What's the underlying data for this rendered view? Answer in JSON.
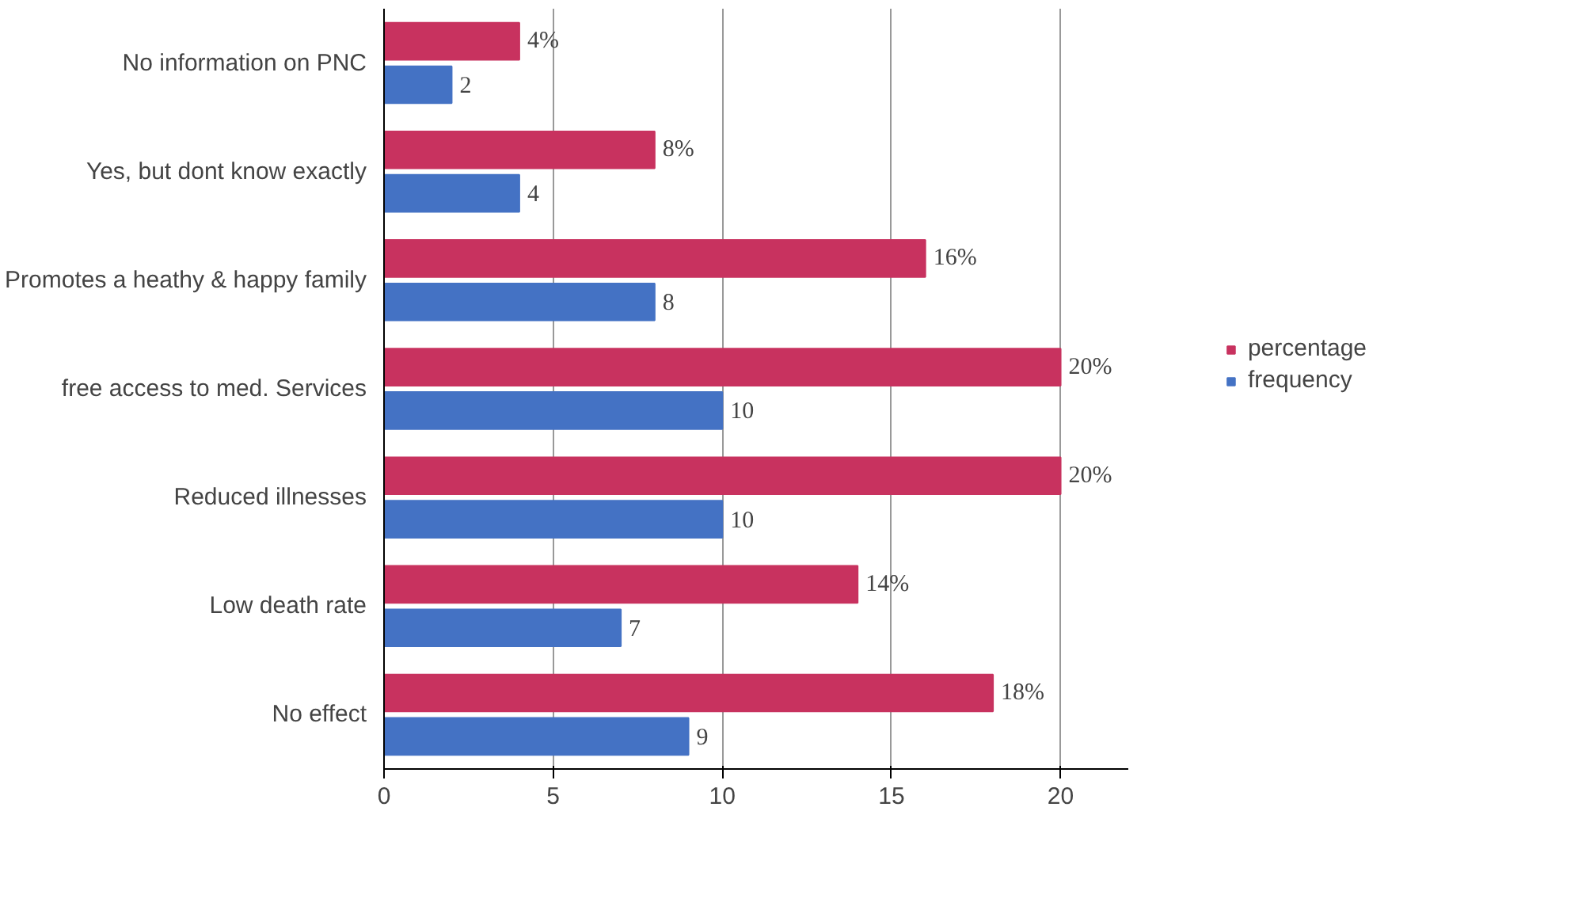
{
  "chart_data": {
    "type": "bar",
    "orientation": "horizontal",
    "categories": [
      "No information on PNC",
      "Yes, but dont know exactly",
      "Promotes a heathy & happy family",
      "free access to med. Services",
      "Reduced illnesses",
      "Low death rate",
      "No effect"
    ],
    "series": [
      {
        "name": "percentage",
        "color": "#c8325f",
        "values": [
          4,
          8,
          16,
          20,
          20,
          14,
          18
        ],
        "value_labels": [
          "4%",
          "8%",
          "16%",
          "20%",
          "20%",
          "14%",
          "18%"
        ]
      },
      {
        "name": "frequency",
        "color": "#4472c4",
        "values": [
          2,
          4,
          8,
          10,
          10,
          7,
          9
        ],
        "value_labels": [
          "2",
          "4",
          "8",
          "10",
          "10",
          "7",
          "9"
        ]
      }
    ],
    "xlim": [
      0,
      22
    ],
    "xticks": [
      0,
      5,
      10,
      15,
      20
    ],
    "grid": "x",
    "legend": "right"
  }
}
